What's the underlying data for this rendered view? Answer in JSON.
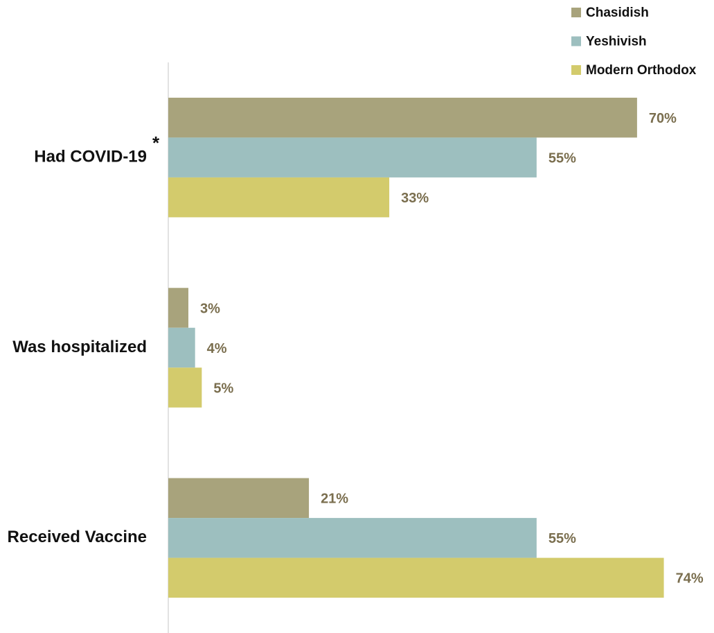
{
  "chart_data": {
    "type": "hbar",
    "categories": [
      "Had COVID-19",
      "Was hospitalized",
      "Received Vaccine"
    ],
    "annotations": [
      "*"
    ],
    "series": [
      {
        "name": "Chasidish",
        "color": "#a8a37c",
        "values": [
          70,
          3,
          21
        ],
        "value_labels": [
          "70%",
          "3%",
          "21%"
        ]
      },
      {
        "name": "Yeshivish",
        "color": "#9dbfbf",
        "values": [
          55,
          4,
          55
        ],
        "value_labels": [
          "55%",
          "4%",
          "55%"
        ]
      },
      {
        "name": "Modern Orthodox",
        "color": "#d3cb6c",
        "values": [
          33,
          5,
          74
        ],
        "value_labels": [
          "33%",
          "5%",
          "74%"
        ]
      }
    ],
    "xlim": [
      0,
      80
    ],
    "legend": "top-right"
  }
}
